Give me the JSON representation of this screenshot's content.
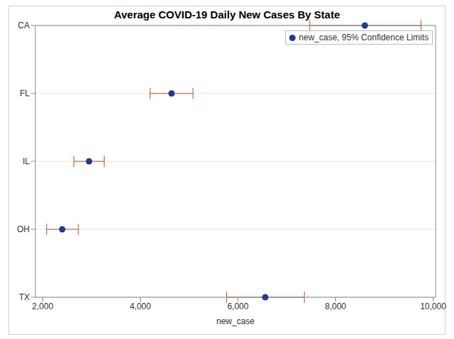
{
  "chart_data": {
    "type": "scatter",
    "title": "Average COVID-19 Daily New Cases By State",
    "x_label": "new_case",
    "categories": [
      "CA",
      "FL",
      "IL",
      "OH",
      "TX"
    ],
    "series": [
      {
        "name": "new_case, 95% Confidence Limits",
        "color": "#1f3a93",
        "marker": "circle",
        "values": [
          8600,
          4640,
          2950,
          2400,
          6560
        ],
        "lower": [
          7470,
          4200,
          2640,
          2080,
          5770
        ],
        "upper": [
          9750,
          5080,
          3260,
          2730,
          7360
        ]
      }
    ],
    "orientation": "horizontal",
    "xlim": [
      1850,
      10050
    ],
    "xticks": [
      {
        "value": 2000,
        "label": "2,000"
      },
      {
        "value": 4000,
        "label": "4,000"
      },
      {
        "value": 6000,
        "label": "6,000"
      },
      {
        "value": 8000,
        "label": "8,000"
      },
      {
        "value": 10000,
        "label": "10,000"
      }
    ],
    "grid": true,
    "legend": "top right"
  }
}
